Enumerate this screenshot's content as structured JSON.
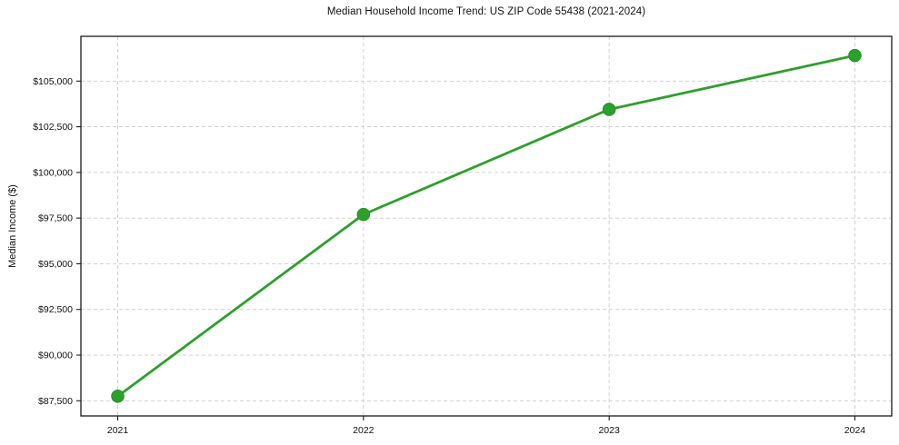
{
  "chart_data": {
    "type": "line",
    "title": "Median Household Income Trend: US ZIP Code 55438 (2021-2024)",
    "xlabel": "",
    "ylabel": "Median Income ($)",
    "x": [
      2021,
      2022,
      2023,
      2024
    ],
    "categories": [
      "2021",
      "2022",
      "2023",
      "2024"
    ],
    "series": [
      {
        "name": "Median Household Income",
        "values": [
          87750,
          97700,
          103450,
          106400
        ]
      }
    ],
    "x_ticks": [
      {
        "value": 2021,
        "label": "2021"
      },
      {
        "value": 2022,
        "label": "2022"
      },
      {
        "value": 2023,
        "label": "2023"
      },
      {
        "value": 2024,
        "label": "2024"
      }
    ],
    "y_ticks": [
      {
        "value": 87500,
        "label": "$87,500"
      },
      {
        "value": 90000,
        "label": "$90,000"
      },
      {
        "value": 92500,
        "label": "$92,500"
      },
      {
        "value": 95000,
        "label": "$95,000"
      },
      {
        "value": 97500,
        "label": "$97,500"
      },
      {
        "value": 100000,
        "label": "$100,000"
      },
      {
        "value": 102500,
        "label": "$102,500"
      },
      {
        "value": 105000,
        "label": "$105,000"
      }
    ],
    "xlim": [
      2020.85,
      2024.15
    ],
    "ylim": [
      86670,
      107450
    ],
    "grid": true,
    "grid_style": "dashed",
    "legend_position": "none",
    "colors": {
      "line": "#2ca02c",
      "marker_fill": "#2ca02c",
      "marker_edge": "#259325",
      "grid": "#cccccc",
      "spine": "#1a1a1a",
      "tick": "#1a1a1a",
      "text": "#111111",
      "background": "#ffffff"
    }
  }
}
